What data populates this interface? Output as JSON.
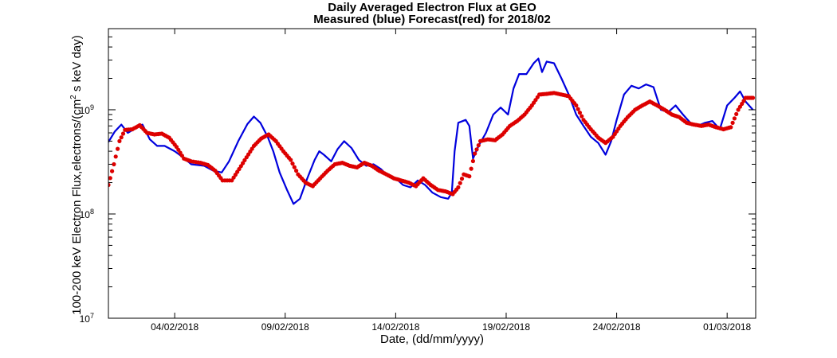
{
  "chart_data": {
    "type": "line",
    "title": "Daily Averaged Electron Flux at GEO",
    "subtitle": "Measured (blue) Forecast(red) for 2018/02",
    "xlabel": "Date, (dd/mm/yyyy)",
    "ylabel_main": "100-200 keV Electron Flux,electrons/(cm",
    "ylabel_sup": "2",
    "ylabel_rest": " s keV day)",
    "x_range": [
      "2018-02-01T00:00",
      "2018-03-02T07:00"
    ],
    "y_range": [
      10000000,
      6000000000
    ],
    "y_scale": "log",
    "x_tick_labels": [
      "04/02/2018",
      "09/02/2018",
      "14/02/2018",
      "19/02/2018",
      "24/02/2018",
      "01/03/2018"
    ],
    "x_tick_dates": [
      "2018-02-04",
      "2018-02-09",
      "2018-02-14",
      "2018-02-19",
      "2018-02-24",
      "2018-03-01"
    ],
    "y_ticks": [
      {
        "value": 10000000,
        "base": "10",
        "exp": "7"
      },
      {
        "value": 100000000,
        "base": "10",
        "exp": "8"
      },
      {
        "value": 1000000000,
        "base": "10",
        "exp": "9"
      }
    ],
    "grid": false,
    "series": [
      {
        "color": "#0000dd",
        "style": "line",
        "points": [
          [
            "2018-02-01T00:00",
            490000000.0
          ],
          [
            "2018-02-01T07:00",
            620000000.0
          ],
          [
            "2018-02-01T14:00",
            720000000.0
          ],
          [
            "2018-02-01T21:00",
            600000000.0
          ],
          [
            "2018-02-02T05:00",
            660000000.0
          ],
          [
            "2018-02-02T13:00",
            720000000.0
          ],
          [
            "2018-02-02T21:00",
            520000000.0
          ],
          [
            "2018-02-03T05:00",
            450000000.0
          ],
          [
            "2018-02-03T13:00",
            450000000.0
          ],
          [
            "2018-02-04T00:00",
            400000000.0
          ],
          [
            "2018-02-04T09:00",
            350000000.0
          ],
          [
            "2018-02-04T18:00",
            300000000.0
          ],
          [
            "2018-02-05T08:00",
            290000000.0
          ],
          [
            "2018-02-05T18:00",
            260000000.0
          ],
          [
            "2018-02-06T03:00",
            250000000.0
          ],
          [
            "2018-02-06T11:00",
            320000000.0
          ],
          [
            "2018-02-06T21:00",
            500000000.0
          ],
          [
            "2018-02-07T07:00",
            730000000.0
          ],
          [
            "2018-02-07T14:00",
            860000000.0
          ],
          [
            "2018-02-07T21:00",
            750000000.0
          ],
          [
            "2018-02-08T05:00",
            550000000.0
          ],
          [
            "2018-02-08T11:00",
            400000000.0
          ],
          [
            "2018-02-08T18:00",
            250000000.0
          ],
          [
            "2018-02-09T02:00",
            170000000.0
          ],
          [
            "2018-02-09T09:00",
            125000000.0
          ],
          [
            "2018-02-09T16:00",
            140000000.0
          ],
          [
            "2018-02-10T00:00",
            220000000.0
          ],
          [
            "2018-02-10T08:00",
            330000000.0
          ],
          [
            "2018-02-10T13:00",
            400000000.0
          ],
          [
            "2018-02-10T18:00",
            370000000.0
          ],
          [
            "2018-02-11T02:00",
            320000000.0
          ],
          [
            "2018-02-11T09:00",
            420000000.0
          ],
          [
            "2018-02-11T16:00",
            500000000.0
          ],
          [
            "2018-02-12T00:00",
            430000000.0
          ],
          [
            "2018-02-12T08:00",
            330000000.0
          ],
          [
            "2018-02-12T16:00",
            290000000.0
          ],
          [
            "2018-02-13T00:00",
            300000000.0
          ],
          [
            "2018-02-13T08:00",
            270000000.0
          ],
          [
            "2018-02-13T16:00",
            230000000.0
          ],
          [
            "2018-02-14T00:00",
            220000000.0
          ],
          [
            "2018-02-14T08:00",
            190000000.0
          ],
          [
            "2018-02-14T16:00",
            180000000.0
          ],
          [
            "2018-02-15T00:00",
            210000000.0
          ],
          [
            "2018-02-15T08:00",
            190000000.0
          ],
          [
            "2018-02-15T16:00",
            160000000.0
          ],
          [
            "2018-02-16T01:00",
            145000000.0
          ],
          [
            "2018-02-16T09:00",
            140000000.0
          ],
          [
            "2018-02-16T13:00",
            160000000.0
          ],
          [
            "2018-02-16T16:00",
            400000000.0
          ],
          [
            "2018-02-16T20:00",
            750000000.0
          ],
          [
            "2018-02-17T04:00",
            800000000.0
          ],
          [
            "2018-02-17T08:00",
            700000000.0
          ],
          [
            "2018-02-17T12:00",
            340000000.0
          ],
          [
            "2018-02-17T18:00",
            450000000.0
          ],
          [
            "2018-02-18T02:00",
            600000000.0
          ],
          [
            "2018-02-18T10:00",
            900000000.0
          ],
          [
            "2018-02-18T18:00",
            1050000000.0
          ],
          [
            "2018-02-19T02:00",
            900000000.0
          ],
          [
            "2018-02-19T08:00",
            1600000000.0
          ],
          [
            "2018-02-19T14:00",
            2200000000.0
          ],
          [
            "2018-02-19T22:00",
            2200000000.0
          ],
          [
            "2018-02-20T06:00",
            2800000000.0
          ],
          [
            "2018-02-20T11:00",
            3100000000.0
          ],
          [
            "2018-02-20T15:00",
            2300000000.0
          ],
          [
            "2018-02-20T20:00",
            2900000000.0
          ],
          [
            "2018-02-21T04:00",
            2800000000.0
          ],
          [
            "2018-02-21T12:00",
            2000000000.0
          ],
          [
            "2018-02-21T20:00",
            1400000000.0
          ],
          [
            "2018-02-22T04:00",
            900000000.0
          ],
          [
            "2018-02-22T12:00",
            700000000.0
          ],
          [
            "2018-02-22T20:00",
            550000000.0
          ],
          [
            "2018-02-23T04:00",
            480000000.0
          ],
          [
            "2018-02-23T12:00",
            370000000.0
          ],
          [
            "2018-02-23T18:00",
            500000000.0
          ],
          [
            "2018-02-24T00:00",
            800000000.0
          ],
          [
            "2018-02-24T08:00",
            1400000000.0
          ],
          [
            "2018-02-24T16:00",
            1700000000.0
          ],
          [
            "2018-02-25T00:00",
            1600000000.0
          ],
          [
            "2018-02-25T08:00",
            1750000000.0
          ],
          [
            "2018-02-25T16:00",
            1650000000.0
          ],
          [
            "2018-02-26T00:00",
            1000000000.0
          ],
          [
            "2018-02-26T08:00",
            950000000.0
          ],
          [
            "2018-02-26T16:00",
            1100000000.0
          ],
          [
            "2018-02-27T00:00",
            900000000.0
          ],
          [
            "2018-02-27T08:00",
            750000000.0
          ],
          [
            "2018-02-27T16:00",
            700000000.0
          ],
          [
            "2018-02-28T00:00",
            750000000.0
          ],
          [
            "2018-02-28T08:00",
            780000000.0
          ],
          [
            "2018-02-28T16:00",
            650000000.0
          ],
          [
            "2018-03-01T00:00",
            1100000000.0
          ],
          [
            "2018-03-01T08:00",
            1300000000.0
          ],
          [
            "2018-03-01T14:00",
            1500000000.0
          ],
          [
            "2018-03-01T20:00",
            1200000000.0
          ],
          [
            "2018-03-02T04:00",
            1000000000.0
          ]
        ]
      },
      {
        "color": "#dd0000",
        "style": "markers",
        "points": [
          [
            "2018-02-01T00:00",
            190000000.0
          ],
          [
            "2018-02-01T06:00",
            300000000.0
          ],
          [
            "2018-02-01T12:00",
            500000000.0
          ],
          [
            "2018-02-01T18:00",
            640000000.0
          ],
          [
            "2018-02-02T02:00",
            650000000.0
          ],
          [
            "2018-02-02T10:00",
            710000000.0
          ],
          [
            "2018-02-02T18:00",
            600000000.0
          ],
          [
            "2018-02-03T02:00",
            580000000.0
          ],
          [
            "2018-02-03T10:00",
            590000000.0
          ],
          [
            "2018-02-03T18:00",
            540000000.0
          ],
          [
            "2018-02-04T02:00",
            440000000.0
          ],
          [
            "2018-02-04T10:00",
            340000000.0
          ],
          [
            "2018-02-04T18:00",
            320000000.0
          ],
          [
            "2018-02-05T04:00",
            310000000.0
          ],
          [
            "2018-02-05T12:00",
            295000000.0
          ],
          [
            "2018-02-05T20:00",
            260000000.0
          ],
          [
            "2018-02-06T04:00",
            210000000.0
          ],
          [
            "2018-02-06T14:00",
            210000000.0
          ],
          [
            "2018-02-06T22:00",
            270000000.0
          ],
          [
            "2018-02-07T06:00",
            350000000.0
          ],
          [
            "2018-02-07T14:00",
            450000000.0
          ],
          [
            "2018-02-07T22:00",
            530000000.0
          ],
          [
            "2018-02-08T06:00",
            580000000.0
          ],
          [
            "2018-02-08T14:00",
            500000000.0
          ],
          [
            "2018-02-08T22:00",
            400000000.0
          ],
          [
            "2018-02-09T06:00",
            330000000.0
          ],
          [
            "2018-02-09T14:00",
            240000000.0
          ],
          [
            "2018-02-09T22:00",
            200000000.0
          ],
          [
            "2018-02-10T06:00",
            185000000.0
          ],
          [
            "2018-02-10T14:00",
            220000000.0
          ],
          [
            "2018-02-10T22:00",
            260000000.0
          ],
          [
            "2018-02-11T06:00",
            300000000.0
          ],
          [
            "2018-02-11T14:00",
            310000000.0
          ],
          [
            "2018-02-11T22:00",
            290000000.0
          ],
          [
            "2018-02-12T06:00",
            280000000.0
          ],
          [
            "2018-02-12T14:00",
            310000000.0
          ],
          [
            "2018-02-12T22:00",
            290000000.0
          ],
          [
            "2018-02-13T06:00",
            260000000.0
          ],
          [
            "2018-02-13T14:00",
            240000000.0
          ],
          [
            "2018-02-13T22:00",
            220000000.0
          ],
          [
            "2018-02-14T06:00",
            210000000.0
          ],
          [
            "2018-02-14T14:00",
            200000000.0
          ],
          [
            "2018-02-14T22:00",
            185000000.0
          ],
          [
            "2018-02-15T06:00",
            220000000.0
          ],
          [
            "2018-02-15T14:00",
            190000000.0
          ],
          [
            "2018-02-15T22:00",
            170000000.0
          ],
          [
            "2018-02-16T06:00",
            165000000.0
          ],
          [
            "2018-02-16T14:00",
            155000000.0
          ],
          [
            "2018-02-16T20:00",
            180000000.0
          ],
          [
            "2018-02-17T02:00",
            240000000.0
          ],
          [
            "2018-02-17T08:00",
            230000000.0
          ],
          [
            "2018-02-17T14:00",
            380000000.0
          ],
          [
            "2018-02-17T20:00",
            500000000.0
          ],
          [
            "2018-02-18T04:00",
            520000000.0
          ],
          [
            "2018-02-18T12:00",
            510000000.0
          ],
          [
            "2018-02-18T20:00",
            580000000.0
          ],
          [
            "2018-02-19T04:00",
            700000000.0
          ],
          [
            "2018-02-19T12:00",
            780000000.0
          ],
          [
            "2018-02-19T20:00",
            900000000.0
          ],
          [
            "2018-02-20T04:00",
            1100000000.0
          ],
          [
            "2018-02-20T12:00",
            1400000000.0
          ],
          [
            "2018-02-20T20:00",
            1420000000.0
          ],
          [
            "2018-02-21T04:00",
            1450000000.0
          ],
          [
            "2018-02-21T12:00",
            1400000000.0
          ],
          [
            "2018-02-21T20:00",
            1350000000.0
          ],
          [
            "2018-02-22T04:00",
            1100000000.0
          ],
          [
            "2018-02-22T12:00",
            800000000.0
          ],
          [
            "2018-02-22T20:00",
            650000000.0
          ],
          [
            "2018-02-23T04:00",
            540000000.0
          ],
          [
            "2018-02-23T12:00",
            480000000.0
          ],
          [
            "2018-02-23T20:00",
            550000000.0
          ],
          [
            "2018-02-24T04:00",
            700000000.0
          ],
          [
            "2018-02-24T12:00",
            850000000.0
          ],
          [
            "2018-02-24T20:00",
            1000000000.0
          ],
          [
            "2018-02-25T04:00",
            1100000000.0
          ],
          [
            "2018-02-25T12:00",
            1200000000.0
          ],
          [
            "2018-02-25T20:00",
            1100000000.0
          ],
          [
            "2018-02-26T04:00",
            1000000000.0
          ],
          [
            "2018-02-26T12:00",
            900000000.0
          ],
          [
            "2018-02-26T20:00",
            850000000.0
          ],
          [
            "2018-02-27T04:00",
            750000000.0
          ],
          [
            "2018-02-27T12:00",
            720000000.0
          ],
          [
            "2018-02-27T20:00",
            700000000.0
          ],
          [
            "2018-02-28T04:00",
            720000000.0
          ],
          [
            "2018-02-28T12:00",
            680000000.0
          ],
          [
            "2018-02-28T20:00",
            650000000.0
          ],
          [
            "2018-03-01T04:00",
            680000000.0
          ],
          [
            "2018-03-01T12:00",
            1000000000.0
          ],
          [
            "2018-03-01T20:00",
            1300000000.0
          ],
          [
            "2018-03-02T04:00",
            1300000000.0
          ]
        ]
      }
    ]
  }
}
